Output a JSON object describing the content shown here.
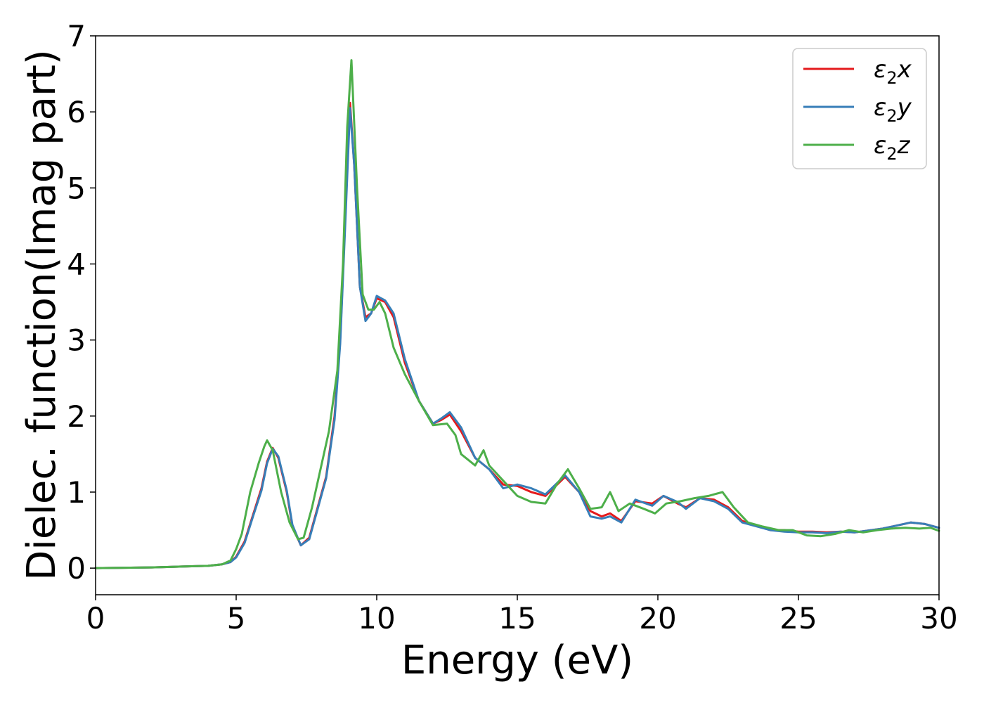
{
  "chart_data": {
    "type": "line",
    "xlabel": "Energy (eV)",
    "ylabel": "Dielec. function(Imag part)",
    "xlim": [
      0,
      30
    ],
    "ylim": [
      -0.35,
      7
    ],
    "xticks": [
      "0",
      "5",
      "10",
      "15",
      "20",
      "25",
      "30"
    ],
    "yticks": [
      "0",
      "1",
      "2",
      "3",
      "4",
      "5",
      "6",
      "7"
    ],
    "grid": false,
    "legend_position": "top-right",
    "series": [
      {
        "name": "ε₂x",
        "legend": {
          "base": "ε",
          "sub": "2",
          "axis": "x"
        },
        "color": "#e41a1c",
        "x": [
          0,
          2,
          4,
          4.5,
          4.8,
          5.0,
          5.3,
          5.6,
          5.9,
          6.1,
          6.3,
          6.5,
          6.8,
          7.0,
          7.3,
          7.6,
          7.9,
          8.2,
          8.5,
          8.7,
          8.9,
          9.05,
          9.2,
          9.4,
          9.6,
          9.8,
          10.0,
          10.3,
          10.6,
          11.0,
          11.5,
          12.0,
          12.3,
          12.6,
          13.0,
          13.5,
          14.0,
          14.5,
          15.0,
          15.5,
          16.0,
          16.7,
          17.2,
          17.6,
          18.0,
          18.3,
          18.7,
          19.2,
          19.8,
          20.2,
          20.7,
          21.0,
          21.5,
          22.0,
          22.5,
          23.0,
          24.0,
          24.5,
          25.0,
          25.5,
          26.0,
          26.5,
          27.0,
          28.0,
          29.0,
          29.5,
          30.0
        ],
        "values": [
          0.0,
          0.01,
          0.03,
          0.05,
          0.08,
          0.15,
          0.35,
          0.7,
          1.05,
          1.4,
          1.58,
          1.45,
          1.0,
          0.55,
          0.3,
          0.4,
          0.8,
          1.2,
          2.0,
          3.0,
          4.8,
          6.12,
          5.3,
          3.7,
          3.3,
          3.35,
          3.55,
          3.5,
          3.3,
          2.7,
          2.2,
          1.9,
          1.95,
          2.02,
          1.8,
          1.45,
          1.3,
          1.1,
          1.08,
          1.0,
          0.95,
          1.2,
          1.0,
          0.75,
          0.68,
          0.72,
          0.62,
          0.88,
          0.85,
          0.95,
          0.85,
          0.8,
          0.92,
          0.9,
          0.8,
          0.62,
          0.5,
          0.5,
          0.48,
          0.48,
          0.47,
          0.48,
          0.47,
          0.52,
          0.6,
          0.58,
          0.53
        ]
      },
      {
        "name": "ε₂y",
        "legend": {
          "base": "ε",
          "sub": "2",
          "axis": "y"
        },
        "color": "#377eb8",
        "x": [
          0,
          2,
          4,
          4.5,
          4.8,
          5.0,
          5.3,
          5.6,
          5.9,
          6.1,
          6.3,
          6.5,
          6.8,
          7.0,
          7.3,
          7.6,
          7.9,
          8.2,
          8.5,
          8.7,
          8.9,
          9.05,
          9.2,
          9.4,
          9.6,
          9.8,
          10.0,
          10.3,
          10.6,
          11.0,
          11.5,
          12.0,
          12.3,
          12.6,
          13.0,
          13.5,
          14.0,
          14.5,
          15.0,
          15.5,
          16.0,
          16.7,
          17.2,
          17.6,
          18.0,
          18.3,
          18.7,
          19.2,
          19.8,
          20.2,
          20.7,
          21.0,
          21.5,
          22.0,
          22.5,
          23.0,
          24.0,
          24.5,
          25.0,
          25.5,
          26.0,
          26.5,
          27.0,
          28.0,
          29.0,
          29.5,
          30.0
        ],
        "values": [
          0.0,
          0.01,
          0.03,
          0.05,
          0.08,
          0.14,
          0.33,
          0.68,
          1.02,
          1.38,
          1.57,
          1.47,
          1.02,
          0.57,
          0.3,
          0.38,
          0.78,
          1.18,
          1.95,
          2.95,
          4.7,
          6.05,
          5.3,
          3.7,
          3.25,
          3.35,
          3.58,
          3.52,
          3.35,
          2.75,
          2.2,
          1.9,
          1.97,
          2.05,
          1.85,
          1.45,
          1.3,
          1.05,
          1.1,
          1.05,
          0.97,
          1.22,
          1.0,
          0.68,
          0.65,
          0.68,
          0.6,
          0.9,
          0.82,
          0.95,
          0.87,
          0.78,
          0.92,
          0.88,
          0.78,
          0.6,
          0.5,
          0.48,
          0.47,
          0.47,
          0.46,
          0.48,
          0.47,
          0.52,
          0.6,
          0.58,
          0.53
        ]
      },
      {
        "name": "ε₂z",
        "legend": {
          "base": "ε",
          "sub": "2",
          "axis": "z"
        },
        "color": "#4daf4a",
        "x": [
          0,
          2,
          4,
          4.5,
          4.8,
          5.0,
          5.2,
          5.5,
          5.8,
          6.0,
          6.1,
          6.3,
          6.6,
          6.9,
          7.2,
          7.4,
          7.7,
          8.0,
          8.3,
          8.6,
          8.8,
          8.95,
          9.1,
          9.3,
          9.5,
          9.7,
          9.9,
          10.1,
          10.3,
          10.6,
          11.0,
          11.5,
          12.0,
          12.5,
          12.8,
          13.0,
          13.5,
          13.8,
          14.0,
          14.5,
          15.0,
          15.5,
          16.0,
          16.4,
          16.8,
          17.2,
          17.6,
          18.0,
          18.3,
          18.6,
          19.0,
          19.5,
          19.9,
          20.3,
          20.8,
          21.3,
          21.8,
          22.3,
          22.7,
          23.2,
          23.7,
          24.3,
          24.8,
          25.3,
          25.8,
          26.3,
          26.8,
          27.3,
          27.8,
          28.3,
          28.8,
          29.3,
          29.7,
          30.0
        ],
        "values": [
          0.0,
          0.01,
          0.03,
          0.05,
          0.1,
          0.25,
          0.45,
          1.0,
          1.38,
          1.6,
          1.68,
          1.55,
          1.0,
          0.6,
          0.38,
          0.4,
          0.8,
          1.3,
          1.8,
          2.6,
          4.0,
          5.8,
          6.68,
          5.0,
          3.6,
          3.4,
          3.4,
          3.5,
          3.35,
          2.9,
          2.55,
          2.2,
          1.88,
          1.9,
          1.75,
          1.5,
          1.35,
          1.55,
          1.35,
          1.15,
          0.95,
          0.87,
          0.85,
          1.1,
          1.3,
          1.05,
          0.78,
          0.8,
          1.0,
          0.75,
          0.85,
          0.78,
          0.72,
          0.85,
          0.88,
          0.92,
          0.95,
          1.0,
          0.8,
          0.6,
          0.55,
          0.5,
          0.5,
          0.43,
          0.42,
          0.45,
          0.5,
          0.47,
          0.5,
          0.52,
          0.53,
          0.52,
          0.53,
          0.49
        ]
      }
    ]
  }
}
